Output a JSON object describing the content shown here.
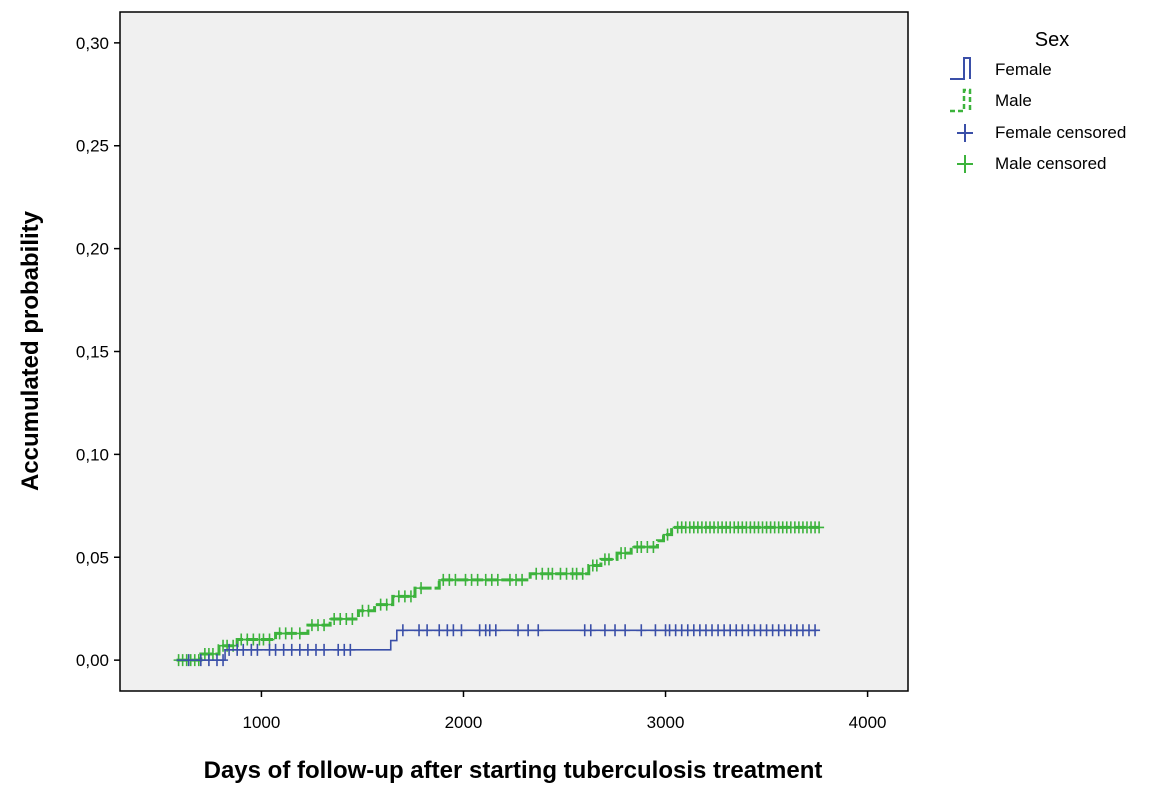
{
  "chart_data": {
    "type": "line",
    "xlabel": "Days of follow-up after starting tuberculosis treatment",
    "ylabel": "Accumulated probability",
    "xlim": [
      300,
      4200
    ],
    "ylim": [
      -0.015,
      0.315
    ],
    "x_ticks": [
      1000,
      2000,
      3000,
      4000
    ],
    "y_ticks": [
      0.0,
      0.05,
      0.1,
      0.15,
      0.2,
      0.25,
      0.3
    ],
    "y_tick_labels": [
      "0,00",
      "0,05",
      "0,10",
      "0,15",
      "0,20",
      "0,25",
      "0,30"
    ],
    "grid": false,
    "legend_position": "top-right, outside plot",
    "legend": {
      "title": "Sex",
      "entries": [
        "Female",
        "Male",
        "Female censored",
        "Male censored"
      ]
    },
    "series": [
      {
        "name": "Female",
        "color": "#3a4fa8",
        "style": "solid-step",
        "steps": [
          [
            580,
            0.0
          ],
          [
            820,
            0.005
          ],
          [
            1640,
            0.0095
          ],
          [
            1670,
            0.0145
          ],
          [
            3750,
            0.0145
          ]
        ],
        "censored_x": [
          640,
          700,
          740,
          780,
          810,
          840,
          880,
          910,
          950,
          980,
          1040,
          1070,
          1110,
          1150,
          1190,
          1230,
          1270,
          1310,
          1380,
          1410,
          1440,
          1700,
          1780,
          1820,
          1880,
          1920,
          1950,
          1990,
          2080,
          2110,
          2130,
          2160,
          2270,
          2320,
          2370,
          2600,
          2630,
          2700,
          2750,
          2800,
          2880,
          2950,
          3000,
          3020,
          3050,
          3080,
          3110,
          3140,
          3170,
          3200,
          3230,
          3260,
          3290,
          3320,
          3350,
          3380,
          3410,
          3440,
          3470,
          3500,
          3530,
          3560,
          3590,
          3620,
          3650,
          3680,
          3710,
          3740
        ]
      },
      {
        "name": "Male",
        "color": "#3cb33c",
        "style": "dashed-step",
        "steps": [
          [
            580,
            0.0
          ],
          [
            700,
            0.003
          ],
          [
            790,
            0.007
          ],
          [
            880,
            0.01
          ],
          [
            1070,
            0.013
          ],
          [
            1230,
            0.017
          ],
          [
            1340,
            0.02
          ],
          [
            1480,
            0.024
          ],
          [
            1560,
            0.027
          ],
          [
            1650,
            0.031
          ],
          [
            1760,
            0.035
          ],
          [
            1880,
            0.039
          ],
          [
            2330,
            0.042
          ],
          [
            2620,
            0.046
          ],
          [
            2680,
            0.049
          ],
          [
            2760,
            0.052
          ],
          [
            2830,
            0.055
          ],
          [
            2960,
            0.058
          ],
          [
            2990,
            0.061
          ],
          [
            3030,
            0.0645
          ],
          [
            3760,
            0.0645
          ]
        ],
        "censored_x": [
          590,
          610,
          630,
          650,
          670,
          690,
          720,
          740,
          760,
          810,
          830,
          860,
          900,
          930,
          960,
          990,
          1010,
          1040,
          1090,
          1120,
          1150,
          1190,
          1250,
          1280,
          1310,
          1360,
          1390,
          1420,
          1450,
          1500,
          1530,
          1590,
          1620,
          1680,
          1710,
          1740,
          1790,
          1900,
          1930,
          1960,
          2010,
          2040,
          2070,
          2110,
          2140,
          2170,
          2230,
          2260,
          2290,
          2360,
          2390,
          2420,
          2440,
          2480,
          2510,
          2540,
          2560,
          2590,
          2640,
          2660,
          2700,
          2720,
          2780,
          2800,
          2860,
          2880,
          2910,
          2940,
          3010,
          3060,
          3080,
          3100,
          3120,
          3140,
          3160,
          3180,
          3200,
          3220,
          3240,
          3260,
          3280,
          3300,
          3320,
          3340,
          3360,
          3380,
          3400,
          3420,
          3440,
          3460,
          3480,
          3500,
          3520,
          3540,
          3560,
          3580,
          3600,
          3620,
          3640,
          3660,
          3680,
          3700,
          3720,
          3740,
          3760
        ]
      }
    ]
  }
}
